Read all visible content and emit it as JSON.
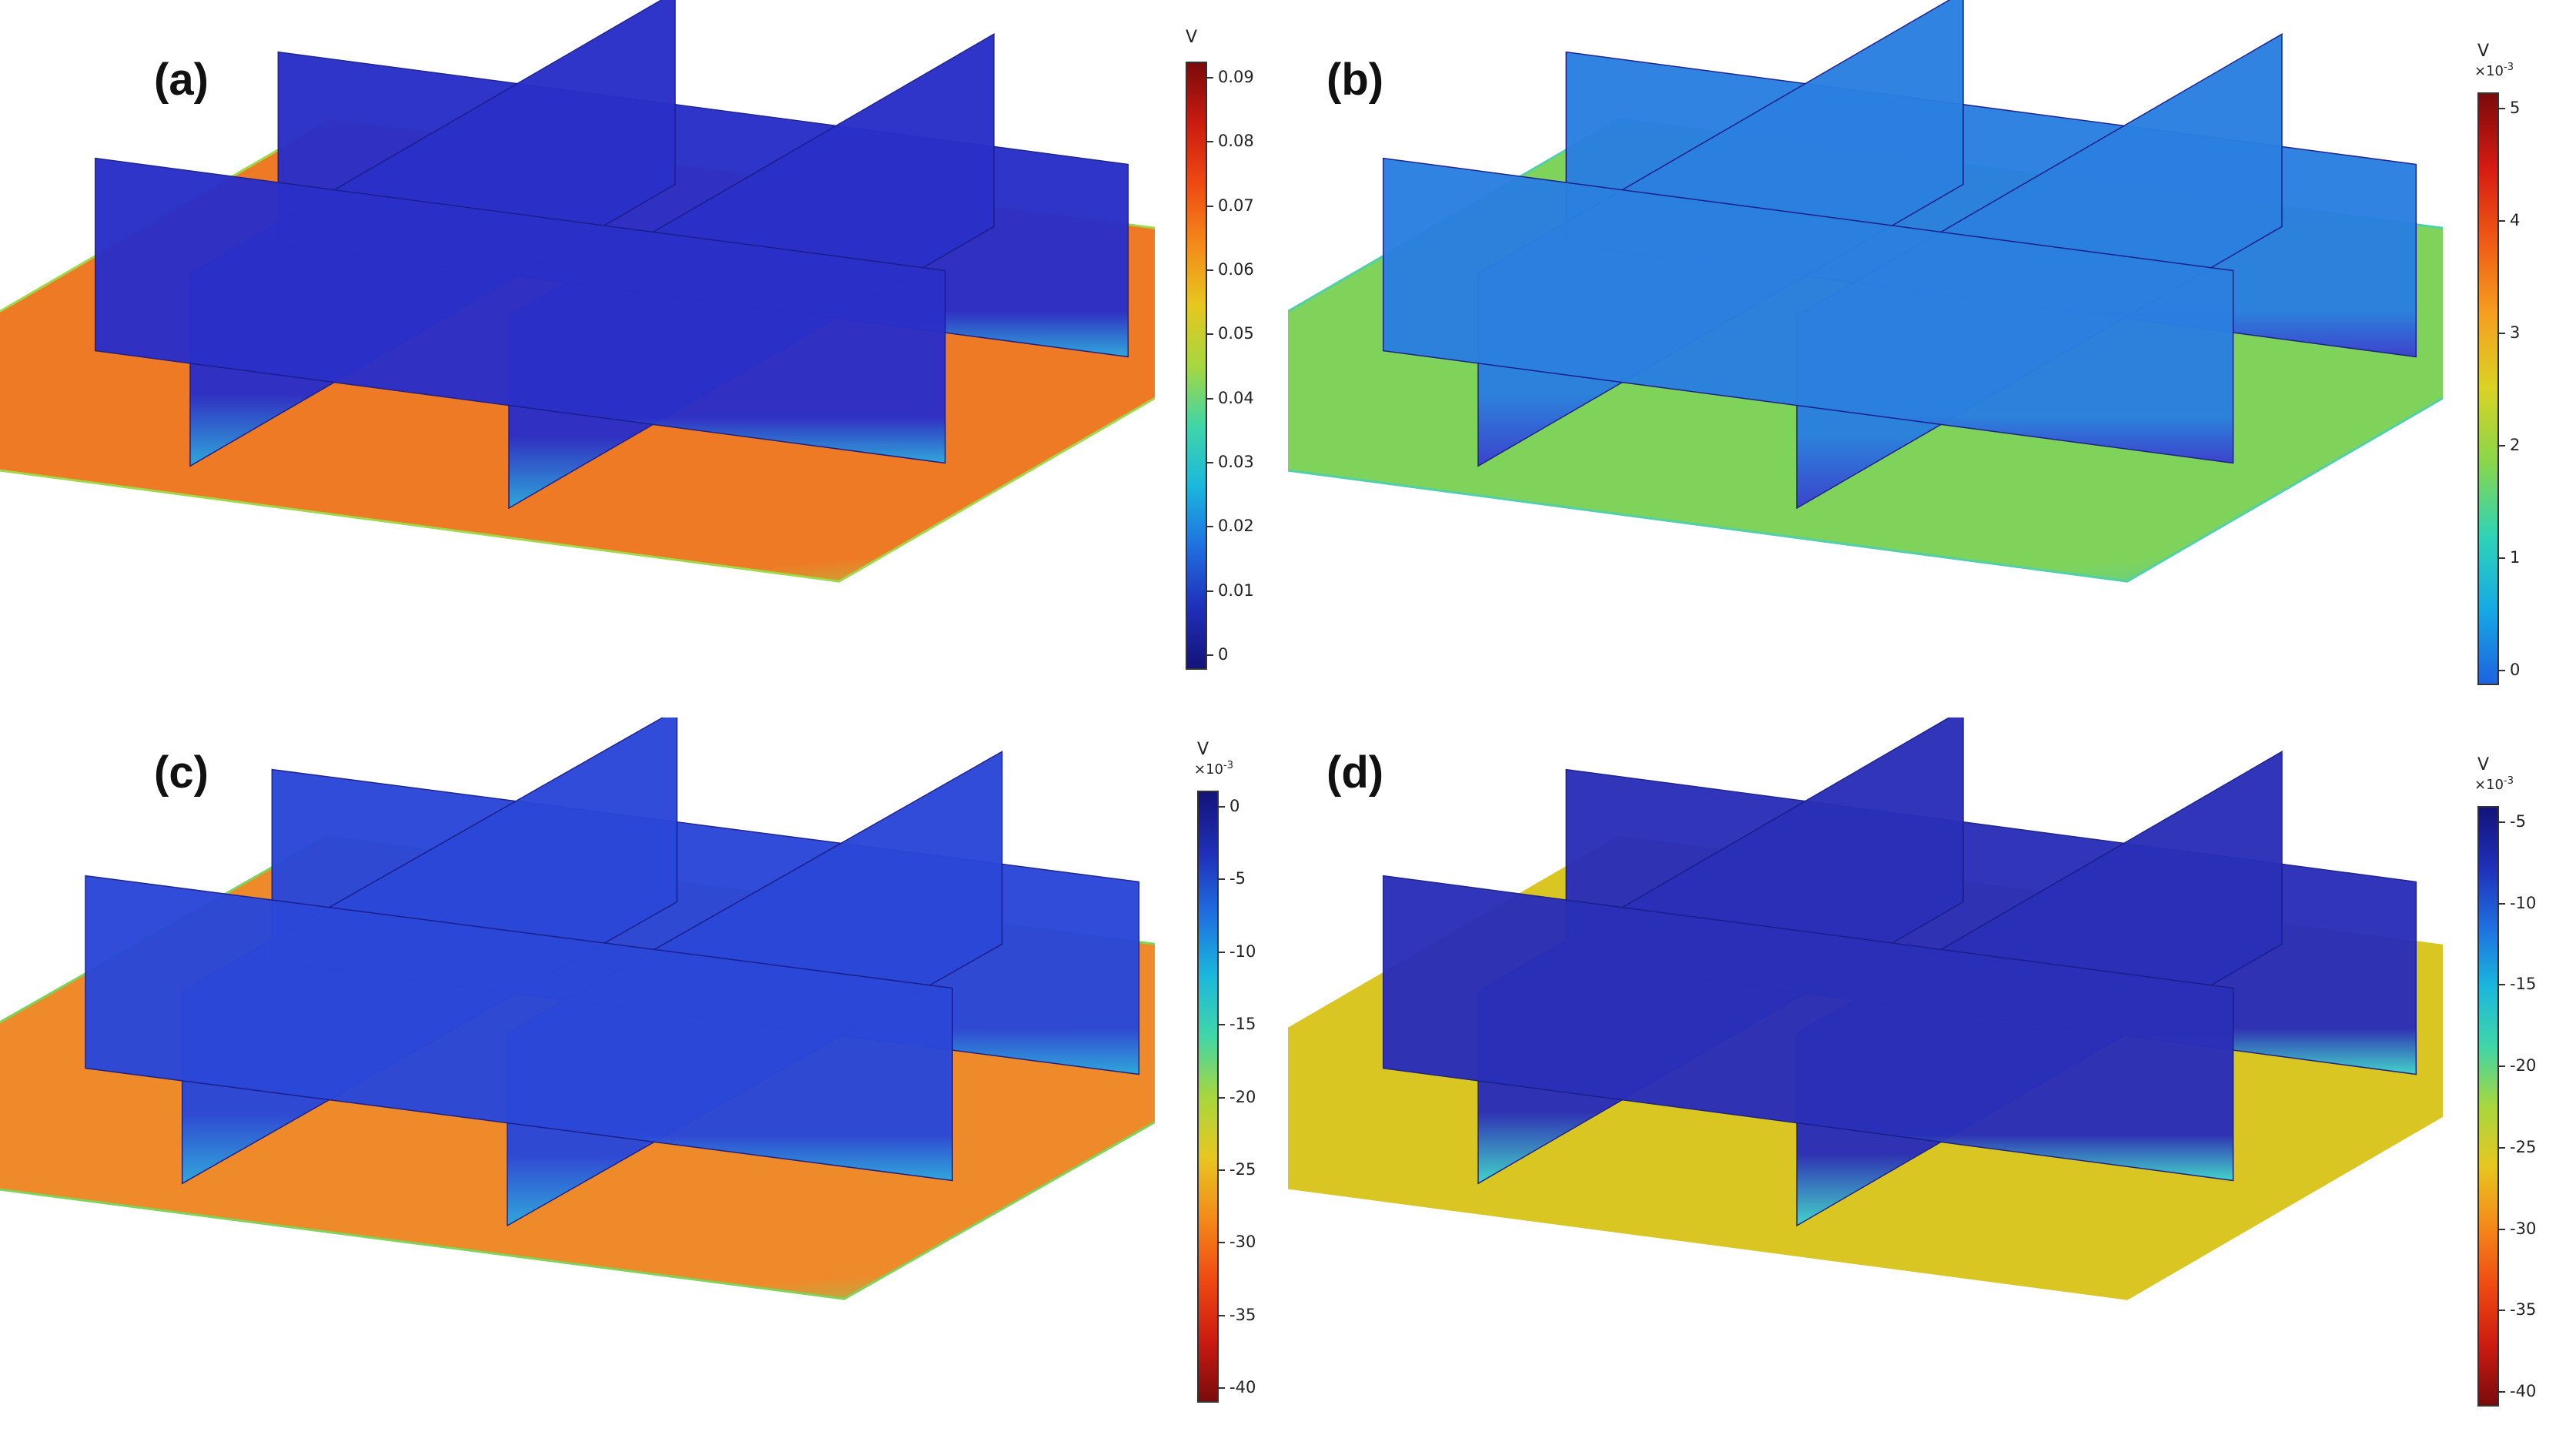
{
  "panels": [
    {
      "label": "(a)",
      "colorbar": {
        "unit": "V",
        "multiplier": "",
        "orientation": "high-top",
        "ticks": [
          "0.09",
          "0.08",
          "0.07",
          "0.06",
          "0.05",
          "0.04",
          "0.03",
          "0.02",
          "0.01",
          "0"
        ],
        "gradient": [
          "#7a0b0b",
          "#cc1b10",
          "#ef4a12",
          "#f48a1a",
          "#e7c71f",
          "#a7d73e",
          "#3fd6a8",
          "#1ab7dd",
          "#1f6fe0",
          "#1f2fb8",
          "#13147a"
        ]
      },
      "floor_color": "#ef7a25",
      "floor_edge_color": "#9fd84a",
      "wall_color": "#2a2fc8",
      "wall_base_color": "#2aa9e0"
    },
    {
      "label": "(b)",
      "colorbar": {
        "unit": "V",
        "multiplier": "×10-3",
        "mult_base": "×10",
        "mult_exp": "-3",
        "orientation": "high-top",
        "ticks": [
          "5",
          "4",
          "3",
          "2",
          "1",
          "0"
        ],
        "gradient": [
          "#7a0b0b",
          "#d61a12",
          "#f05a15",
          "#f5a020",
          "#d9d324",
          "#88d64b",
          "#2fd3b6",
          "#16a9e4",
          "#1e62df"
        ]
      },
      "floor_color": "#7fd35a",
      "floor_edge_color": "#4fd0a8",
      "wall_color": "#2a7fe0",
      "wall_base_color": "#3a3fd0"
    },
    {
      "label": "(c)",
      "colorbar": {
        "unit": "V",
        "multiplier": "×10-3",
        "mult_base": "×10",
        "mult_exp": "-3",
        "orientation": "low-bottom",
        "ticks": [
          "0",
          "-5",
          "-10",
          "-15",
          "-20",
          "-25",
          "-30",
          "-35",
          "-40"
        ],
        "gradient": [
          "#13147a",
          "#1f2fb8",
          "#1f6fe0",
          "#1ab7dd",
          "#3fd6a8",
          "#a7d73e",
          "#e7c71f",
          "#f48a1a",
          "#ef4a12",
          "#cc1b10",
          "#7a0b0b"
        ]
      },
      "floor_color": "#ef8a2a",
      "floor_edge_color": "#7fd35a",
      "wall_color": "#2a47d8",
      "wall_base_color": "#2aa9e0"
    },
    {
      "label": "(d)",
      "colorbar": {
        "unit": "V",
        "multiplier": "×10-3",
        "mult_base": "×10",
        "mult_exp": "-3",
        "orientation": "low-bottom",
        "ticks": [
          "-5",
          "-10",
          "-15",
          "-20",
          "-25",
          "-30",
          "-35",
          "-40"
        ],
        "gradient": [
          "#13147a",
          "#1f2fb8",
          "#1f6fe0",
          "#1ab7dd",
          "#3fd6a8",
          "#a7d73e",
          "#e7c71f",
          "#f48a1a",
          "#ef4a12",
          "#cc1b10",
          "#7a0b0b"
        ]
      },
      "floor_color": "#d9c623",
      "floor_edge_color": "#d9c623",
      "wall_color": "#2a2fb8",
      "wall_base_color": "#3fd6d0"
    }
  ]
}
